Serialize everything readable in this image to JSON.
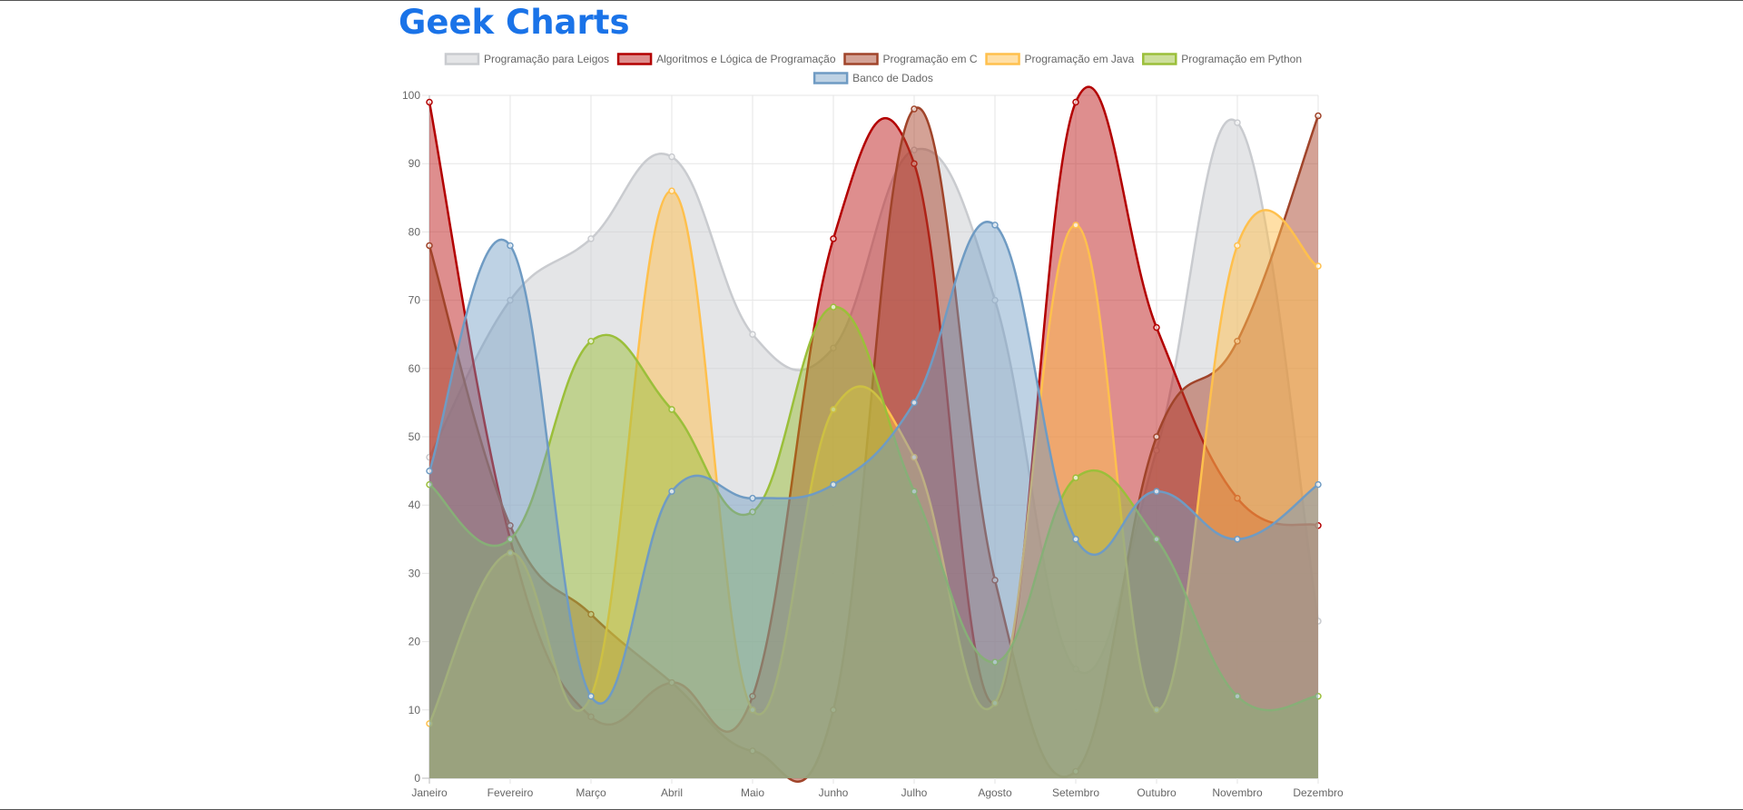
{
  "page": {
    "title": "Geek Charts"
  },
  "chart_data": {
    "type": "area",
    "categories": [
      "Janeiro",
      "Fevereiro",
      "Março",
      "Abril",
      "Maio",
      "Junho",
      "Julho",
      "Agosto",
      "Setembro",
      "Outubro",
      "Novembro",
      "Dezembro"
    ],
    "ylim": [
      0,
      100
    ],
    "yticks": [
      0,
      10,
      20,
      30,
      40,
      50,
      60,
      70,
      80,
      90,
      100
    ],
    "grid": true,
    "legend_position": "top",
    "series": [
      {
        "name": "Programação para Leigos",
        "color": "#c9cbcf",
        "fill": "rgba(201,203,207,0.5)",
        "values": [
          47,
          70,
          79,
          91,
          65,
          63,
          92,
          70,
          16,
          48,
          96,
          23
        ]
      },
      {
        "name": "Algoritmos e Lógica de Programação",
        "color": "#b30000",
        "fill": "rgba(190,30,30,0.5)",
        "values": [
          99,
          35,
          9,
          14,
          12,
          79,
          90,
          11,
          99,
          66,
          41,
          37
        ]
      },
      {
        "name": "Programação em C",
        "color": "#a0442a",
        "fill": "rgba(170,70,45,0.5)",
        "values": [
          78,
          37,
          24,
          14,
          4,
          10,
          98,
          29,
          1,
          50,
          64,
          97
        ]
      },
      {
        "name": "Programação em Java",
        "color": "#ffc04d",
        "fill": "rgba(255,192,77,0.5)",
        "values": [
          8,
          33,
          12,
          86,
          10,
          54,
          47,
          11,
          81,
          10,
          78,
          75
        ]
      },
      {
        "name": "Programação em Python",
        "color": "#9bbf3a",
        "fill": "rgba(155,191,58,0.5)",
        "values": [
          43,
          35,
          64,
          54,
          39,
          69,
          42,
          17,
          44,
          35,
          12,
          12
        ]
      },
      {
        "name": "Banco de Dados",
        "color": "#6f9bc3",
        "fill": "rgba(111,155,195,0.45)",
        "values": [
          45,
          78,
          12,
          42,
          41,
          43,
          55,
          81,
          35,
          42,
          35,
          43
        ]
      }
    ]
  }
}
